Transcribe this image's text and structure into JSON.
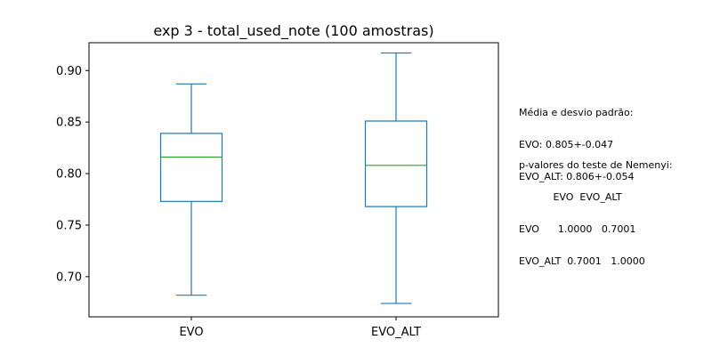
{
  "chart_data": {
    "type": "box",
    "title": "exp 3 - total_used_note (100 amostras)",
    "xlabel": "",
    "ylabel": "",
    "categories": [
      "EVO",
      "EVO_ALT"
    ],
    "ylim": [
      0.661,
      0.927
    ],
    "yticks": [
      0.7,
      0.75,
      0.8,
      0.85,
      0.9
    ],
    "ytick_labels": [
      "0.70",
      "0.75",
      "0.80",
      "0.85",
      "0.90"
    ],
    "grid": false,
    "boxes": [
      {
        "name": "EVO",
        "whisker_low": 0.682,
        "q1": 0.773,
        "median": 0.816,
        "q3": 0.839,
        "whisker_high": 0.887
      },
      {
        "name": "EVO_ALT",
        "whisker_low": 0.674,
        "q1": 0.768,
        "median": 0.808,
        "q3": 0.851,
        "whisker_high": 0.917
      }
    ],
    "colors": {
      "box": "#1f77b4",
      "median": "#2ca02c",
      "axes": "#000000"
    }
  },
  "annotations": {
    "stats_header": "Média e desvio padrão:",
    "stats_lines": [
      "EVO: 0.805+-0.047",
      "EVO_ALT: 0.806+-0.054"
    ],
    "nemenyi_header": "p-valores do teste de Nemenyi:",
    "nemenyi_lines": [
      "           EVO  EVO_ALT",
      "EVO      1.0000   0.7001",
      "EVO_ALT  0.7001   1.0000"
    ]
  }
}
